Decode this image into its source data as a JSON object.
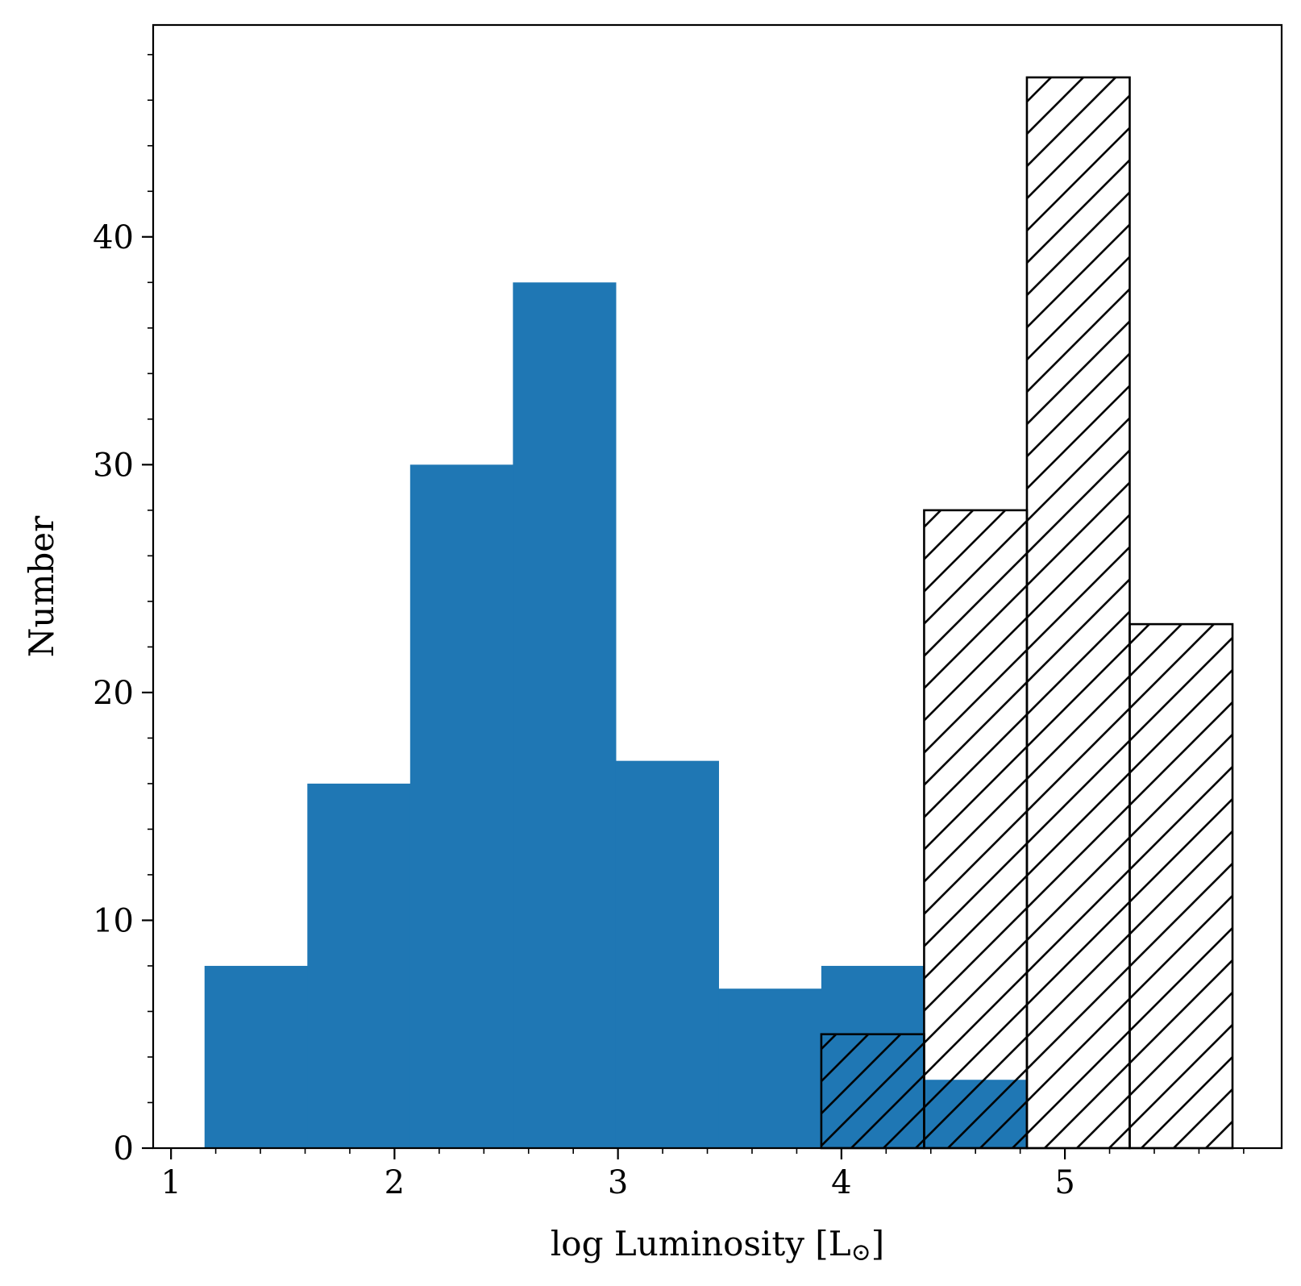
{
  "chart_data": {
    "type": "bar",
    "title": "",
    "xlabel": "log Luminosity [L",
    "xlabel_sub": "⊙",
    "xlabel_close": "]",
    "ylabel": "Number",
    "xlim": [
      0.92,
      5.97
    ],
    "ylim": [
      0,
      49.3
    ],
    "xticks": [
      1,
      2,
      3,
      4,
      5
    ],
    "yticks": [
      0,
      10,
      20,
      30,
      40
    ],
    "xtick_labels": [
      "1",
      "2",
      "3",
      "4",
      "5"
    ],
    "ytick_labels": [
      "0",
      "10",
      "20",
      "30",
      "40"
    ],
    "grid": false,
    "series": [
      {
        "style": "filled",
        "color": "#1f77b4",
        "bin_edges": [
          1.15,
          1.61,
          2.07,
          2.53,
          2.99,
          3.45,
          3.91,
          4.37,
          4.83
        ],
        "counts": [
          8,
          16,
          30,
          38,
          17,
          7,
          8,
          3
        ]
      },
      {
        "style": "hatched",
        "color": "#000000",
        "bin_edges": [
          3.91,
          4.37,
          4.83,
          5.29,
          5.75
        ],
        "counts": [
          5,
          28,
          47,
          23
        ]
      }
    ]
  }
}
